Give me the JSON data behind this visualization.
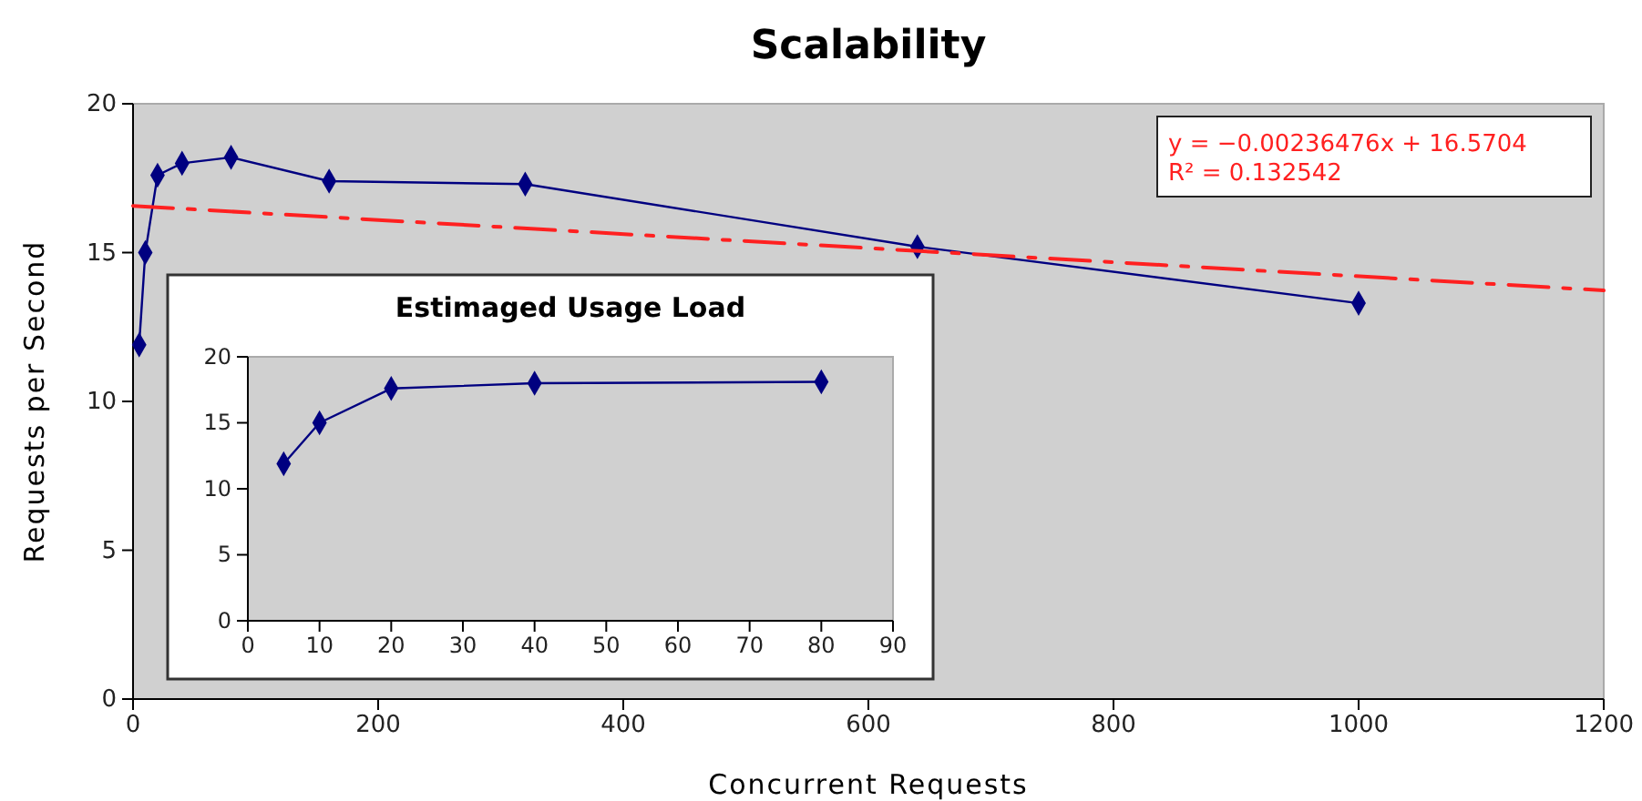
{
  "chart_data": [
    {
      "type": "line",
      "title": "Scalability",
      "xlabel": "Concurrent Requests",
      "ylabel": "Requests per Second",
      "xlim": [
        0,
        1200
      ],
      "xticks": [
        0,
        200,
        400,
        600,
        800,
        1000,
        1200
      ],
      "ylim": [
        0,
        20
      ],
      "yticks": [
        0,
        5,
        10,
        15,
        20
      ],
      "marker": "diamond",
      "series": [
        {
          "color": "#000080",
          "x": [
            5,
            10,
            20,
            40,
            80,
            160,
            320,
            640,
            1000
          ],
          "values": [
            11.9,
            15.0,
            17.6,
            18.0,
            18.2,
            17.4,
            17.3,
            15.2,
            13.3
          ]
        },
        {
          "type": "line",
          "color": "#ff2020",
          "line_style": "dashed",
          "marker": "none",
          "x": [
            0,
            1200
          ],
          "values": [
            16.57,
            13.73
          ]
        }
      ],
      "annotations": [
        "y = −0.00236476x + 16.5704",
        "R² = 0.132542"
      ]
    },
    {
      "type": "line",
      "title": "Estimaged Usage Load",
      "xlim": [
        0,
        90
      ],
      "xticks": [
        0,
        10,
        20,
        30,
        40,
        50,
        60,
        70,
        80,
        90
      ],
      "ylim": [
        0,
        20
      ],
      "yticks": [
        0,
        5,
        10,
        15,
        20
      ],
      "marker": "diamond",
      "series": [
        {
          "color": "#000080",
          "x": [
            5,
            10,
            20,
            40,
            80
          ],
          "values": [
            11.9,
            15.0,
            17.6,
            18.0,
            18.1
          ]
        }
      ]
    }
  ]
}
